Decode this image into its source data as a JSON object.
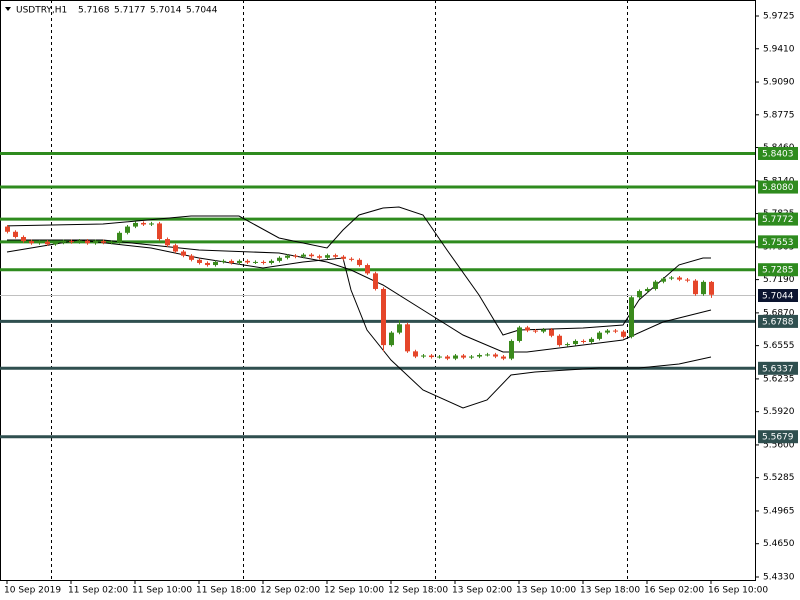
{
  "chart_data": {
    "type": "candlestick",
    "title": "USDTRY,H1",
    "up_color": "#3a8a1c",
    "down_color": "#e5462a",
    "xlim": [
      -0.875,
      93.5
    ],
    "ylim": [
      5.4301,
      5.9879
    ],
    "open": [
      5.77,
      5.765,
      5.76,
      5.756,
      5.754,
      5.7555,
      5.753,
      5.7545,
      5.756,
      5.755,
      5.7565,
      5.754,
      5.756,
      5.7545,
      5.755,
      5.764,
      5.77,
      5.7735,
      5.772,
      5.773,
      5.758,
      5.752,
      5.746,
      5.742,
      5.738,
      5.735,
      5.733,
      5.736,
      5.737,
      5.735,
      5.737,
      5.7355,
      5.736,
      5.735,
      5.737,
      5.74,
      5.742,
      5.741,
      5.743,
      5.7415,
      5.74,
      5.7425,
      5.741,
      5.739,
      5.738,
      5.733,
      5.725,
      5.71,
      5.656,
      5.668,
      5.676,
      5.65,
      5.645,
      5.646,
      5.6445,
      5.645,
      5.643,
      5.646,
      5.644,
      5.645,
      5.6465,
      5.647,
      5.645,
      5.643,
      5.66,
      5.673,
      5.67,
      5.669,
      5.671,
      5.665,
      5.656,
      5.657,
      5.66,
      5.659,
      5.662,
      5.668,
      5.67,
      5.669,
      5.664,
      5.702,
      5.708,
      5.71,
      5.717,
      5.72,
      5.721,
      5.719,
      5.718,
      5.705,
      5.7168
    ],
    "high": [
      5.7715,
      5.7665,
      5.7615,
      5.7575,
      5.757,
      5.757,
      5.756,
      5.7575,
      5.7575,
      5.758,
      5.758,
      5.7575,
      5.7575,
      5.7565,
      5.7655,
      5.7715,
      5.775,
      5.775,
      5.7745,
      5.7745,
      5.7595,
      5.7535,
      5.7475,
      5.7435,
      5.7395,
      5.7365,
      5.7375,
      5.7385,
      5.7385,
      5.7385,
      5.7385,
      5.7375,
      5.7375,
      5.7385,
      5.7415,
      5.7435,
      5.7435,
      5.7445,
      5.7445,
      5.743,
      5.744,
      5.744,
      5.7425,
      5.7405,
      5.7395,
      5.7345,
      5.7265,
      5.7115,
      5.6695,
      5.68,
      5.6775,
      5.6515,
      5.6475,
      5.6475,
      5.6465,
      5.6465,
      5.6475,
      5.6475,
      5.6465,
      5.648,
      5.6485,
      5.6485,
      5.6465,
      5.6615,
      5.6745,
      5.6745,
      5.6715,
      5.6725,
      5.6725,
      5.6665,
      5.6585,
      5.6615,
      5.6615,
      5.6635,
      5.6695,
      5.6715,
      5.6715,
      5.6705,
      5.7035,
      5.7095,
      5.7115,
      5.7185,
      5.7215,
      5.7225,
      5.7225,
      5.7205,
      5.7195,
      5.7183,
      5.7177
    ],
    "low": [
      5.7635,
      5.7585,
      5.7545,
      5.7525,
      5.7525,
      5.7515,
      5.7515,
      5.753,
      5.7535,
      5.7535,
      5.7525,
      5.7525,
      5.753,
      5.753,
      5.7535,
      5.7625,
      5.7685,
      5.7705,
      5.7705,
      5.7565,
      5.7505,
      5.7445,
      5.7405,
      5.7365,
      5.7335,
      5.7315,
      5.7315,
      5.7345,
      5.7335,
      5.7335,
      5.734,
      5.734,
      5.7335,
      5.7335,
      5.7355,
      5.7385,
      5.7395,
      5.7395,
      5.74,
      5.7385,
      5.7385,
      5.7395,
      5.7375,
      5.7365,
      5.7315,
      5.7235,
      5.7085,
      5.65,
      5.6545,
      5.6665,
      5.6485,
      5.6435,
      5.6435,
      5.643,
      5.643,
      5.6415,
      5.6415,
      5.6425,
      5.6425,
      5.6435,
      5.645,
      5.6435,
      5.6415,
      5.6415,
      5.6585,
      5.6685,
      5.6675,
      5.6675,
      5.6635,
      5.6545,
      5.6545,
      5.6555,
      5.6575,
      5.6575,
      5.6605,
      5.6665,
      5.6675,
      5.6625,
      5.6625,
      5.7005,
      5.7065,
      5.7085,
      5.7155,
      5.7185,
      5.7175,
      5.7165,
      5.7035,
      5.7035,
      5.7014
    ],
    "close": [
      5.765,
      5.76,
      5.756,
      5.754,
      5.7555,
      5.753,
      5.7545,
      5.756,
      5.755,
      5.7565,
      5.754,
      5.756,
      5.7545,
      5.755,
      5.764,
      5.77,
      5.7735,
      5.772,
      5.773,
      5.758,
      5.752,
      5.746,
      5.742,
      5.738,
      5.735,
      5.733,
      5.736,
      5.737,
      5.735,
      5.737,
      5.7355,
      5.736,
      5.735,
      5.737,
      5.74,
      5.742,
      5.741,
      5.743,
      5.7415,
      5.74,
      5.7425,
      5.741,
      5.739,
      5.738,
      5.733,
      5.725,
      5.71,
      5.656,
      5.668,
      5.676,
      5.65,
      5.645,
      5.646,
      5.6445,
      5.645,
      5.643,
      5.646,
      5.644,
      5.645,
      5.6465,
      5.647,
      5.645,
      5.643,
      5.66,
      5.673,
      5.67,
      5.669,
      5.671,
      5.665,
      5.656,
      5.657,
      5.66,
      5.659,
      5.662,
      5.668,
      5.67,
      5.669,
      5.664,
      5.702,
      5.708,
      5.71,
      5.717,
      5.72,
      5.721,
      5.719,
      5.718,
      5.705,
      5.7168,
      5.7044
    ],
    "bands": [
      {
        "color": "#000000",
        "x": [
          0,
          12,
          23,
          29,
          34,
          40,
          42,
          44,
          47,
          49,
          52,
          55,
          59,
          62,
          64,
          72,
          77,
          79,
          84,
          87,
          88
        ],
        "values": [
          5.7706,
          5.7725,
          5.7802,
          5.7802,
          5.759,
          5.7494,
          5.7667,
          5.7811,
          5.7879,
          5.7888,
          5.7811,
          5.7475,
          5.7042,
          5.6657,
          5.6705,
          5.6725,
          5.6753,
          5.6994,
          5.7331,
          5.7398,
          5.7398
        ]
      },
      {
        "color": "#000000",
        "x": [
          0,
          12,
          24,
          34,
          40,
          43,
          47,
          52,
          57,
          62,
          65,
          72,
          77,
          82,
          88
        ],
        "values": [
          5.7571,
          5.7571,
          5.7475,
          5.7446,
          5.7359,
          5.7282,
          5.7138,
          5.6898,
          5.6657,
          5.6494,
          5.6494,
          5.6561,
          5.6609,
          5.6782,
          5.6898
        ]
      },
      {
        "color": "#000000",
        "x": [
          0,
          9,
          18,
          24,
          32,
          37,
          42,
          43,
          45,
          48,
          52,
          57,
          60,
          63,
          66,
          74,
          79,
          84,
          88
        ],
        "values": [
          5.7455,
          5.7571,
          5.7494,
          5.7398,
          5.7302,
          5.7359,
          5.7398,
          5.709,
          5.6705,
          5.6417,
          5.6128,
          5.5955,
          5.6032,
          5.6273,
          5.6301,
          5.634,
          5.634,
          5.6378,
          5.6446
        ]
      }
    ],
    "levels": [
      {
        "value": 5.8403,
        "label": "5.8403",
        "color": "#2e8b1e"
      },
      {
        "value": 5.808,
        "label": "5.8080",
        "color": "#2e8b1e"
      },
      {
        "value": 5.7772,
        "label": "5.7772",
        "color": "#2e8b1e"
      },
      {
        "value": 5.7553,
        "label": "5.7553",
        "color": "#2e8b1e"
      },
      {
        "value": 5.7285,
        "label": "5.7285",
        "color": "#2e8b1e"
      },
      {
        "value": 5.6788,
        "label": "5.6788",
        "color": "#2f4f4f"
      },
      {
        "value": 5.6337,
        "label": "5.6337",
        "color": "#2f4f4f"
      },
      {
        "value": 5.5679,
        "label": "5.5679",
        "color": "#2f4f4f"
      }
    ],
    "current_price_color": "#0b1430",
    "separators": [
      6,
      30,
      54,
      78
    ],
    "yticks": [
      5.9725,
      {
        "value": 5.941,
        "label": "5.9410"
      },
      {
        "value": 5.909,
        "label": "5.9090"
      },
      5.8775,
      {
        "value": 5.846,
        "label": "5.8460"
      },
      {
        "value": 5.814,
        "label": "5.8140"
      },
      5.7825,
      5.7505,
      {
        "value": 5.719,
        "label": "5.7190"
      },
      {
        "value": 5.687,
        "label": "5.6870"
      },
      5.6555,
      5.6235,
      {
        "value": 5.592,
        "label": "5.5920"
      },
      {
        "value": 5.56,
        "label": "5.5600"
      },
      5.5285,
      5.4965,
      {
        "value": 5.465,
        "label": "5.4650"
      },
      {
        "value": 5.433,
        "label": "5.4330"
      }
    ],
    "xticks": [
      {
        "value": 0,
        "label": "10 Sep 2019"
      },
      {
        "value": 8,
        "label": "11 Sep 02:00"
      },
      {
        "value": 16,
        "label": "11 Sep 10:00"
      },
      {
        "value": 24,
        "label": "11 Sep 18:00"
      },
      {
        "value": 32,
        "label": "12 Sep 02:00"
      },
      {
        "value": 40,
        "label": "12 Sep 10:00"
      },
      {
        "value": 48,
        "label": "12 Sep 18:00"
      },
      {
        "value": 56,
        "label": "13 Sep 02:00"
      },
      {
        "value": 64,
        "label": "13 Sep 10:00"
      },
      {
        "value": 72,
        "label": "13 Sep 18:00"
      },
      {
        "value": 80,
        "label": "16 Sep 02:00"
      },
      {
        "value": 88,
        "label": "16 Sep 10:00"
      }
    ]
  }
}
